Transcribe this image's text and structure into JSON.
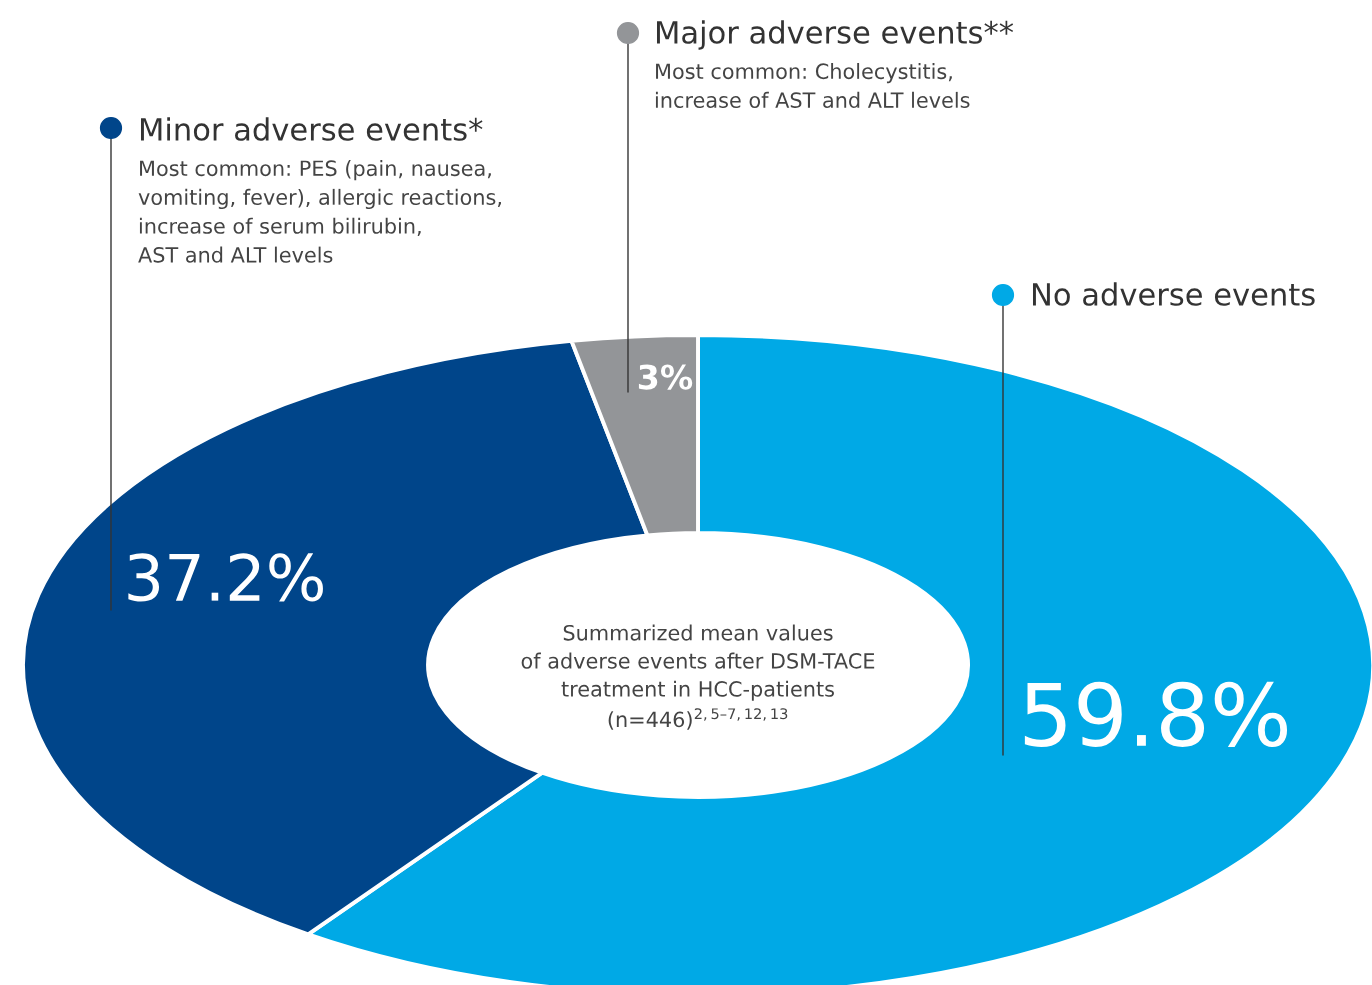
{
  "chart_data": {
    "type": "donut",
    "categories": [
      "No adverse events",
      "Minor adverse events*",
      "Major adverse events**"
    ],
    "values": [
      59.8,
      37.2,
      3
    ],
    "colors": [
      "#00a9e6",
      "#00458a",
      "#939598"
    ],
    "value_labels": [
      "59.8%",
      "37.2%",
      "3%"
    ],
    "legend": "top",
    "annotations": [
      "Most common: PES (pain, nausea,\nvomiting, fever), allergic reactions,\nincrease of serum bilirubin,\nAST and ALT levels",
      "Most common: Cholecystitis,\nincrease of AST and ALT levels",
      "Summarized mean values\nof adverse events after DSM-TACE\ntreatment in HCC-patients\n(n=446)$^{2,5–7,12,13}$"
    ]
  }
}
